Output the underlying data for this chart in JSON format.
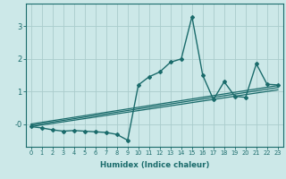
{
  "xlabel": "Humidex (Indice chaleur)",
  "bg_color": "#cce8e8",
  "line_color": "#1a6b6b",
  "grid_color": "#aacccc",
  "xlim": [
    -0.5,
    23.5
  ],
  "ylim": [
    -0.7,
    3.7
  ],
  "main_x": [
    0,
    1,
    2,
    3,
    4,
    5,
    6,
    7,
    8,
    9,
    10,
    11,
    12,
    13,
    14,
    15,
    16,
    17,
    18,
    19,
    20,
    21,
    22,
    23
  ],
  "main_y": [
    -0.08,
    -0.12,
    -0.18,
    -0.22,
    -0.2,
    -0.22,
    -0.24,
    -0.26,
    -0.32,
    -0.5,
    1.2,
    1.45,
    1.6,
    1.9,
    2.0,
    3.3,
    1.5,
    0.75,
    1.3,
    0.85,
    0.82,
    1.85,
    1.22,
    1.2
  ],
  "trend_lines": [
    [
      0,
      -0.08,
      23,
      1.05
    ],
    [
      0,
      -0.04,
      23,
      1.12
    ],
    [
      0,
      0.0,
      23,
      1.18
    ]
  ]
}
